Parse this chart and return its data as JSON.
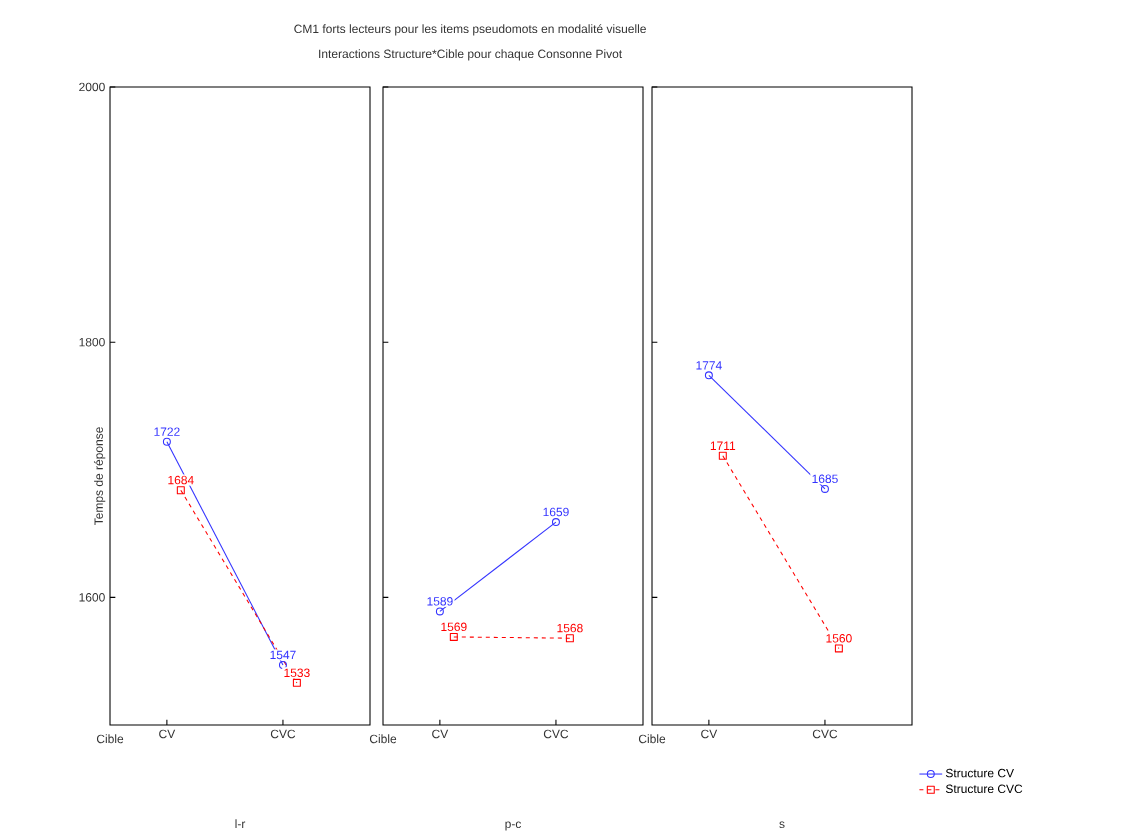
{
  "chart_data": [
    {
      "type": "line",
      "xlabel": "Cible",
      "ylabel": "Temps de réponse",
      "annotations": [
        "l-r"
      ],
      "categories": [
        "CV",
        "CVC"
      ],
      "ylim": [
        1500,
        2000
      ],
      "yticks": [
        1600,
        1800,
        2000
      ],
      "data_labels": true,
      "grid": false,
      "series": [
        {
          "color": "#3333ff",
          "marker": "circle",
          "line_style": "solid",
          "values": [
            1722,
            1547
          ]
        },
        {
          "color": "#ff0000",
          "marker": "square",
          "line_style": "dashed",
          "values": [
            1684,
            1533
          ]
        }
      ]
    },
    {
      "type": "line",
      "title": "CM1 forts lecteurs pour les items pseudomots en modalité visuelle",
      "subtitle": "Interactions Structure*Cible pour chaque Consonne Pivot",
      "xlabel": "Cible",
      "annotations": [
        "p-c"
      ],
      "categories": [
        "CV",
        "CVC"
      ],
      "ylim": [
        1500,
        2000
      ],
      "yticks": [
        1600,
        1800,
        2000
      ],
      "tick_labels": "x",
      "data_labels": true,
      "grid": false,
      "series": [
        {
          "color": "#3333ff",
          "marker": "circle",
          "line_style": "solid",
          "values": [
            1589,
            1659
          ]
        },
        {
          "color": "#ff0000",
          "marker": "square",
          "line_style": "dashed",
          "values": [
            1569,
            1568
          ]
        }
      ]
    },
    {
      "type": "line",
      "xlabel": "Cible",
      "annotations": [
        "s"
      ],
      "categories": [
        "CV",
        "CVC"
      ],
      "ylim": [
        1500,
        2000
      ],
      "yticks": [
        1600,
        1800,
        2000
      ],
      "tick_labels": "x",
      "data_labels": true,
      "grid": false,
      "legend": "bottom right",
      "series": [
        {
          "name": "Structure CV",
          "color": "#3333ff",
          "marker": "circle",
          "line_style": "solid",
          "values": [
            1774,
            1685
          ]
        },
        {
          "name": "Structure CVC",
          "color": "#ff0000",
          "marker": "square",
          "line_style": "dashed",
          "values": [
            1711,
            1560
          ]
        }
      ]
    }
  ]
}
